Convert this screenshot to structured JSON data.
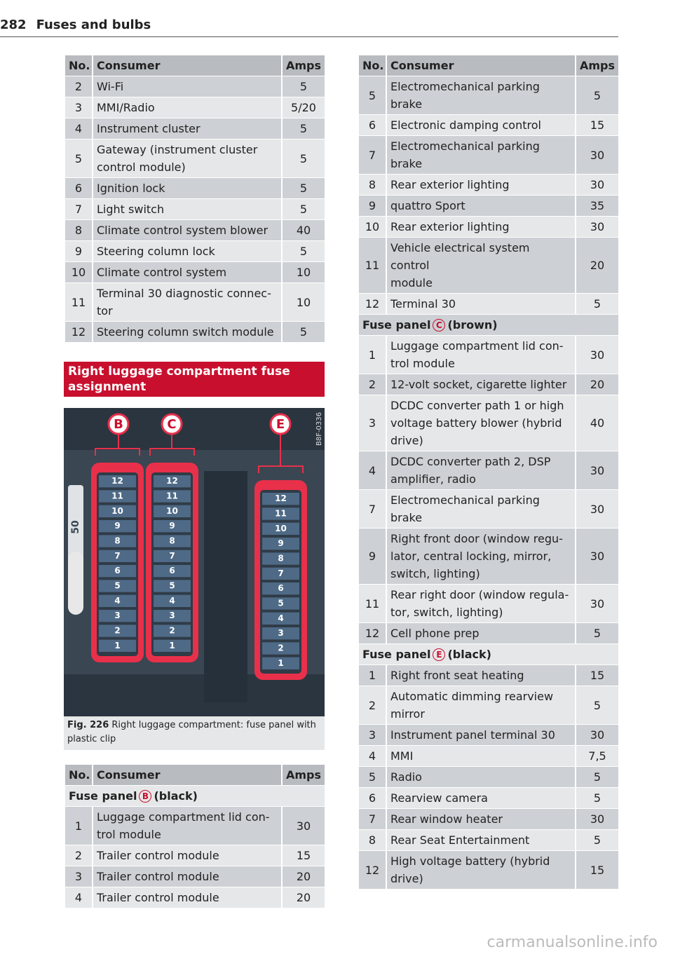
{
  "header": {
    "page": "282",
    "section": "Fuses and bulbs"
  },
  "table1": {
    "header": [
      "No.",
      "Consumer",
      "Amps"
    ],
    "rows": [
      {
        "no": "2",
        "consumer": "Wi-Fi",
        "amps": "5"
      },
      {
        "no": "3",
        "consumer": "MMI/Radio",
        "amps": "5/20"
      },
      {
        "no": "4",
        "consumer": "Instrument cluster",
        "amps": "5"
      },
      {
        "no": "5",
        "consumer": "Gateway (instrument cluster\ncontrol module)",
        "amps": "5"
      },
      {
        "no": "6",
        "consumer": "Ignition lock",
        "amps": "5"
      },
      {
        "no": "7",
        "consumer": "Light switch",
        "amps": "5"
      },
      {
        "no": "8",
        "consumer": "Climate control system blower",
        "amps": "40"
      },
      {
        "no": "9",
        "consumer": "Steering column lock",
        "amps": "5"
      },
      {
        "no": "10",
        "consumer": "Climate control system",
        "amps": "10"
      },
      {
        "no": "11",
        "consumer": "Terminal 30 diagnostic connec-\ntor",
        "amps": "10"
      },
      {
        "no": "12",
        "consumer": "Steering column switch module",
        "amps": "5"
      }
    ]
  },
  "section_heading": "Right luggage compartment fuse\nassignment",
  "figure": {
    "panels": [
      "B",
      "C",
      "E"
    ],
    "fuses": [
      "12",
      "11",
      "10",
      "9",
      "8",
      "7",
      "6",
      "5",
      "4",
      "3",
      "2",
      "1"
    ],
    "side_label": "50",
    "code": "B8F-0336",
    "caption_number": "Fig. 226",
    "caption": "Right luggage compartment: fuse panel with\nplastic clip"
  },
  "table2": {
    "header": [
      "No.",
      "Consumer",
      "Amps"
    ],
    "rows": [
      {
        "panel": "Fuse panel",
        "letter": "B",
        "color": "(black)"
      },
      {
        "no": "1",
        "consumer": "Luggage compartment lid con-\ntrol module",
        "amps": "30"
      },
      {
        "no": "2",
        "consumer": "Trailer control module",
        "amps": "15"
      },
      {
        "no": "3",
        "consumer": "Trailer control module",
        "amps": "20"
      },
      {
        "no": "4",
        "consumer": "Trailer control module",
        "amps": "20"
      }
    ]
  },
  "table3": {
    "header": [
      "No.",
      "Consumer",
      "Amps"
    ],
    "rows": [
      {
        "no": "5",
        "consumer": "Electromechanical parking\nbrake",
        "amps": "5"
      },
      {
        "no": "6",
        "consumer": "Electronic damping control",
        "amps": "15"
      },
      {
        "no": "7",
        "consumer": "Electromechanical parking\nbrake",
        "amps": "30"
      },
      {
        "no": "8",
        "consumer": "Rear exterior lighting",
        "amps": "30"
      },
      {
        "no": "9",
        "consumer": "quattro Sport",
        "amps": "35"
      },
      {
        "no": "10",
        "consumer": "Rear exterior lighting",
        "amps": "30"
      },
      {
        "no": "11",
        "consumer": "Vehicle electrical system control\nmodule",
        "amps": "20"
      },
      {
        "no": "12",
        "consumer": "Terminal 30",
        "amps": "5"
      },
      {
        "panel": "Fuse panel",
        "letter": "C",
        "color": "(brown)"
      },
      {
        "no": "1",
        "consumer": "Luggage compartment lid con-\ntrol module",
        "amps": "30"
      },
      {
        "no": "2",
        "consumer": "12-volt socket, cigarette lighter",
        "amps": "20"
      },
      {
        "no": "3",
        "consumer": "DCDC converter path 1 or high\nvoltage battery blower (hybrid\ndrive)",
        "amps": "40"
      },
      {
        "no": "4",
        "consumer": "DCDC converter path 2, DSP\namplifier, radio",
        "amps": "30"
      },
      {
        "no": "7",
        "consumer": "Electromechanical parking\nbrake",
        "amps": "30"
      },
      {
        "no": "9",
        "consumer": "Right front door (window regu-\nlator, central locking, mirror,\nswitch, lighting)",
        "amps": "30"
      },
      {
        "no": "11",
        "consumer": "Rear right door (window regula-\ntor, switch, lighting)",
        "amps": "30"
      },
      {
        "no": "12",
        "consumer": "Cell phone prep",
        "amps": "5"
      },
      {
        "panel": "Fuse panel",
        "letter": "E",
        "color": "(black)"
      },
      {
        "no": "1",
        "consumer": "Right front seat heating",
        "amps": "15"
      },
      {
        "no": "2",
        "consumer": "Automatic dimming rearview\nmirror",
        "amps": "5"
      },
      {
        "no": "3",
        "consumer": "Instrument panel terminal 30",
        "amps": "30"
      },
      {
        "no": "4",
        "consumer": "MMI",
        "amps": "7,5"
      },
      {
        "no": "5",
        "consumer": "Radio",
        "amps": "5"
      },
      {
        "no": "6",
        "consumer": "Rearview camera",
        "amps": "5"
      },
      {
        "no": "7",
        "consumer": "Rear window heater",
        "amps": "30"
      },
      {
        "no": "8",
        "consumer": "Rear Seat Entertainment",
        "amps": "5"
      },
      {
        "no": "12",
        "consumer": "High voltage battery (hybrid\ndrive)",
        "amps": "15"
      }
    ]
  },
  "watermark": "carmanualsonline.info"
}
